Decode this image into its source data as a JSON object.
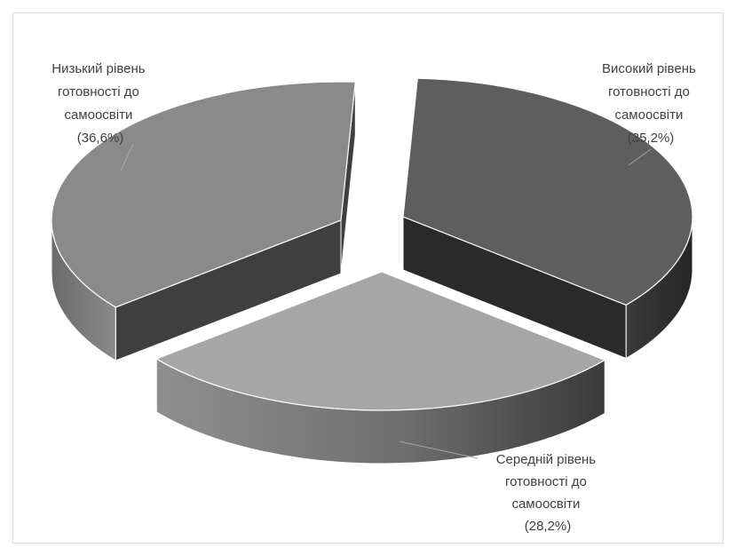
{
  "chart_data": {
    "type": "pie",
    "style": "3d-exploded",
    "title": "",
    "slices": [
      {
        "label_lines": [
          "Високий рівень",
          "готовності до",
          "самоосвіти",
          "(35,2%)"
        ],
        "value": 35.2,
        "color": "#5e5e5e"
      },
      {
        "label_lines": [
          "Середній рівень",
          "готовності до",
          "самоосвіти",
          "(28,2%)"
        ],
        "value": 28.2,
        "color": "#a6a6a6"
      },
      {
        "label_lines": [
          "Низький рівень",
          "готовності до",
          "самоосвіти",
          "(36,6%)"
        ],
        "value": 36.6,
        "color": "#8a8a8a"
      }
    ],
    "legend": "none",
    "leader_lines": true
  }
}
